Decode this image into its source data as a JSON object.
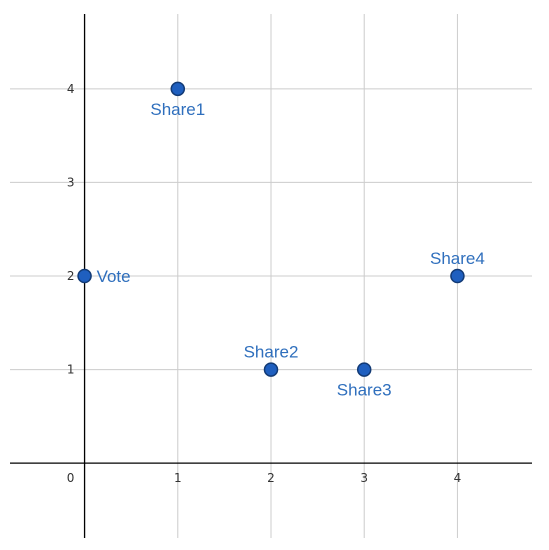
{
  "chart_data": {
    "type": "scatter",
    "xlim": [
      -0.8,
      4.8
    ],
    "ylim": [
      -0.8,
      4.8
    ],
    "grid": true,
    "x_ticks": [
      {
        "value": 0,
        "label": "0"
      },
      {
        "value": 1,
        "label": "1"
      },
      {
        "value": 2,
        "label": "2"
      },
      {
        "value": 3,
        "label": "3"
      },
      {
        "value": 4,
        "label": "4"
      }
    ],
    "y_ticks": [
      {
        "value": 1,
        "label": "1"
      },
      {
        "value": 2,
        "label": "2"
      },
      {
        "value": 3,
        "label": "3"
      },
      {
        "value": 4,
        "label": "4"
      }
    ],
    "points": [
      {
        "label": "Share1",
        "x": 1,
        "y": 4,
        "label_position": "below"
      },
      {
        "label": "Vote",
        "x": 0,
        "y": 2,
        "label_position": "right"
      },
      {
        "label": "Share2",
        "x": 2,
        "y": 1,
        "label_position": "above"
      },
      {
        "label": "Share3",
        "x": 3,
        "y": 1,
        "label_position": "below"
      },
      {
        "label": "Share4",
        "x": 4,
        "y": 2,
        "label_position": "above"
      }
    ],
    "colors": {
      "point": "#1f5fbf",
      "label": "#2f6fbd"
    }
  }
}
